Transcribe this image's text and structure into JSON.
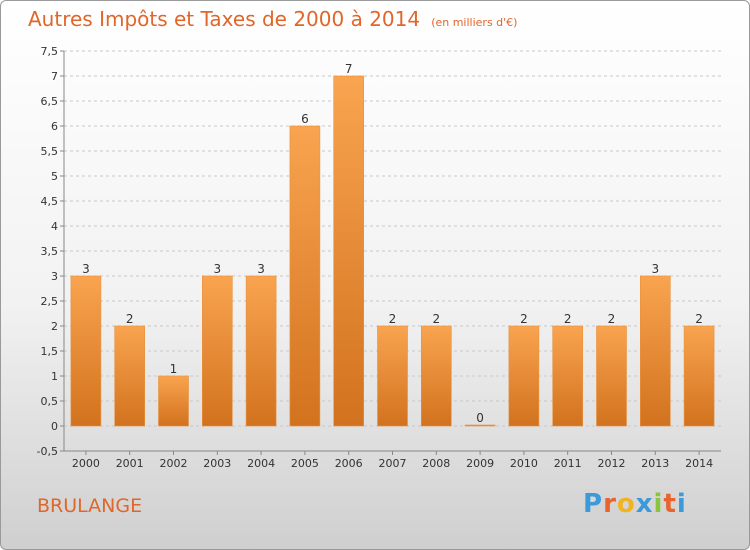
{
  "chart_data": {
    "type": "bar",
    "title": "Autres Impôts et Taxes de 2000 à 2014",
    "subtitle": "(en milliers d'€)",
    "categories": [
      "2000",
      "2001",
      "2002",
      "2003",
      "2004",
      "2005",
      "2006",
      "2007",
      "2008",
      "2009",
      "2010",
      "2011",
      "2012",
      "2013",
      "2014"
    ],
    "values": [
      3,
      2,
      1,
      3,
      3,
      6,
      7,
      2,
      2,
      0,
      2,
      2,
      2,
      3,
      2
    ],
    "data_labels": [
      "3",
      "2",
      "1",
      "3",
      "3",
      "6",
      "7",
      "2",
      "2",
      "0",
      "2",
      "2",
      "2",
      "3",
      "2"
    ],
    "ylim": [
      -0.5,
      7.5
    ],
    "yticks": [
      "-0,5",
      "0",
      "0,5",
      "1",
      "1,5",
      "2",
      "2,5",
      "3",
      "3,5",
      "4",
      "4,5",
      "5",
      "5,5",
      "6",
      "6,5",
      "7",
      "7,5"
    ],
    "ytick_values": [
      -0.5,
      0,
      0.5,
      1,
      1.5,
      2,
      2.5,
      3,
      3.5,
      4,
      4.5,
      5,
      5.5,
      6,
      6.5,
      7,
      7.5
    ],
    "grid": "horizontal-dashed",
    "bar_color_top": "#f9a450",
    "bar_color_bottom": "#d2721e"
  },
  "commune": "BRULANGE",
  "logo": {
    "letters": [
      "P",
      "r",
      "o",
      "x",
      "i",
      "t",
      "i"
    ],
    "colors": [
      "#3b9ad9",
      "#e8642c",
      "#f0b323",
      "#3b9ad9",
      "#8ac43f",
      "#e8642c",
      "#3b9ad9"
    ]
  }
}
